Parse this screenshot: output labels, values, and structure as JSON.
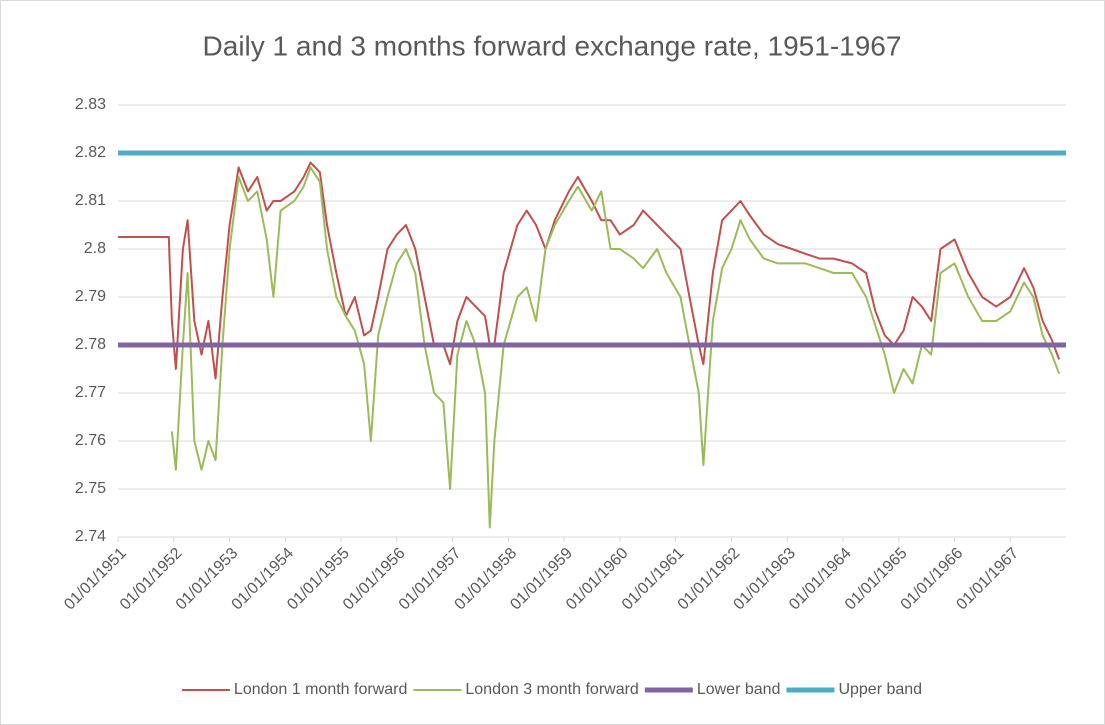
{
  "chart_data": {
    "type": "line",
    "title": "Daily 1 and 3 months forward exchange rate, 1951-1967",
    "xlim": [
      "1951-01-01",
      "1968-01-01"
    ],
    "xticks": [
      "01/01/1951",
      "01/01/1952",
      "01/01/1953",
      "01/01/1954",
      "01/01/1955",
      "01/01/1956",
      "01/01/1957",
      "01/01/1958",
      "01/01/1959",
      "01/01/1960",
      "01/01/1961",
      "01/01/1962",
      "01/01/1963",
      "01/01/1964",
      "01/01/1965",
      "01/01/1966",
      "01/01/1967"
    ],
    "ylim": [
      2.74,
      2.83
    ],
    "yticks": [
      2.74,
      2.75,
      2.76,
      2.77,
      2.78,
      2.79,
      2.8,
      2.81,
      2.82,
      2.83
    ],
    "grid": true,
    "legend": "bottom",
    "series": [
      {
        "name": "London 1 month forward",
        "color": "#c0504d",
        "width": 2,
        "x": [
          "1951-01-02",
          "1951-11-30",
          "1951-12-05",
          "1951-12-20",
          "1952-01-15",
          "1952-03-01",
          "1952-04-01",
          "1952-05-15",
          "1952-07-01",
          "1952-08-15",
          "1952-10-01",
          "1952-11-15",
          "1953-01-01",
          "1953-03-01",
          "1953-05-01",
          "1953-07-01",
          "1953-09-01",
          "1953-10-15",
          "1953-12-01",
          "1954-03-01",
          "1954-05-01",
          "1954-06-15",
          "1954-08-15",
          "1954-10-01",
          "1954-12-01",
          "1955-02-01",
          "1955-04-01",
          "1955-06-01",
          "1955-07-15",
          "1955-09-01",
          "1955-11-01",
          "1956-01-01",
          "1956-03-01",
          "1956-05-01",
          "1956-07-01",
          "1956-09-01",
          "1956-11-01",
          "1956-12-15",
          "1957-02-01",
          "1957-04-01",
          "1957-06-01",
          "1957-08-01",
          "1957-09-01",
          "1957-10-01",
          "1957-12-01",
          "1958-03-01",
          "1958-05-01",
          "1958-07-01",
          "1958-09-01",
          "1958-11-01",
          "1959-02-01",
          "1959-04-01",
          "1959-07-01",
          "1959-09-01",
          "1959-11-01",
          "1960-01-01",
          "1960-04-01",
          "1960-06-01",
          "1960-09-01",
          "1960-11-01",
          "1961-02-01",
          "1961-04-01",
          "1961-06-01",
          "1961-07-01",
          "1961-09-01",
          "1961-11-01",
          "1962-01-01",
          "1962-03-01",
          "1962-05-01",
          "1962-08-01",
          "1962-11-01",
          "1963-02-01",
          "1963-05-01",
          "1963-08-01",
          "1963-11-01",
          "1964-03-01",
          "1964-06-01",
          "1964-08-01",
          "1964-10-01",
          "1964-12-01",
          "1965-02-01",
          "1965-04-01",
          "1965-06-01",
          "1965-08-01",
          "1965-10-01",
          "1966-01-01",
          "1966-04-01",
          "1966-07-01",
          "1966-10-01",
          "1967-01-01",
          "1967-04-01",
          "1967-06-01",
          "1967-08-01",
          "1967-10-01",
          "1967-11-17"
        ],
        "values": [
          2.8025,
          2.8025,
          2.7975,
          2.785,
          2.775,
          2.8,
          2.806,
          2.785,
          2.778,
          2.785,
          2.773,
          2.79,
          2.805,
          2.817,
          2.812,
          2.815,
          2.808,
          2.81,
          2.81,
          2.812,
          2.815,
          2.818,
          2.816,
          2.805,
          2.795,
          2.786,
          2.79,
          2.782,
          2.783,
          2.79,
          2.8,
          2.803,
          2.805,
          2.8,
          2.79,
          2.78,
          2.78,
          2.776,
          2.785,
          2.79,
          2.788,
          2.786,
          2.78,
          2.78,
          2.795,
          2.805,
          2.808,
          2.805,
          2.8,
          2.806,
          2.812,
          2.815,
          2.81,
          2.806,
          2.806,
          2.803,
          2.805,
          2.808,
          2.805,
          2.803,
          2.8,
          2.79,
          2.78,
          2.776,
          2.795,
          2.806,
          2.808,
          2.81,
          2.807,
          2.803,
          2.801,
          2.8,
          2.799,
          2.798,
          2.798,
          2.797,
          2.795,
          2.787,
          2.782,
          2.78,
          2.783,
          2.79,
          2.788,
          2.785,
          2.8,
          2.802,
          2.795,
          2.79,
          2.788,
          2.79,
          2.796,
          2.792,
          2.785,
          2.781,
          2.777
        ]
      },
      {
        "name": "London 3 month forward",
        "color": "#9bbb59",
        "width": 2,
        "x": [
          "1951-01-02",
          "1951-11-30",
          "1951-12-05",
          "1951-12-20",
          "1952-01-15",
          "1952-03-01",
          "1952-04-01",
          "1952-05-15",
          "1952-07-01",
          "1952-08-15",
          "1952-10-01",
          "1952-11-15",
          "1953-01-01",
          "1953-03-01",
          "1953-05-01",
          "1953-07-01",
          "1953-09-01",
          "1953-10-15",
          "1953-12-01",
          "1954-03-01",
          "1954-05-01",
          "1954-06-15",
          "1954-08-15",
          "1954-10-01",
          "1954-12-01",
          "1955-02-01",
          "1955-04-01",
          "1955-06-01",
          "1955-07-15",
          "1955-09-01",
          "1955-11-01",
          "1956-01-01",
          "1956-03-01",
          "1956-05-01",
          "1956-07-01",
          "1956-09-01",
          "1956-11-01",
          "1956-12-15",
          "1957-02-01",
          "1957-04-01",
          "1957-06-01",
          "1957-08-01",
          "1957-09-01",
          "1957-10-01",
          "1957-12-01",
          "1958-03-01",
          "1958-05-01",
          "1958-07-01",
          "1958-09-01",
          "1958-11-01",
          "1959-02-01",
          "1959-04-01",
          "1959-07-01",
          "1959-09-01",
          "1959-11-01",
          "1960-01-01",
          "1960-04-01",
          "1960-06-01",
          "1960-09-01",
          "1960-11-01",
          "1961-02-01",
          "1961-04-01",
          "1961-06-01",
          "1961-07-01",
          "1961-09-01",
          "1961-11-01",
          "1962-01-01",
          "1962-03-01",
          "1962-05-01",
          "1962-08-01",
          "1962-11-01",
          "1963-02-01",
          "1963-05-01",
          "1963-08-01",
          "1963-11-01",
          "1964-03-01",
          "1964-06-01",
          "1964-08-01",
          "1964-10-01",
          "1964-12-01",
          "1965-02-01",
          "1965-04-01",
          "1965-06-01",
          "1965-08-01",
          "1965-10-01",
          "1966-01-01",
          "1966-04-01",
          "1966-07-01",
          "1966-10-01",
          "1967-01-01",
          "1967-04-01",
          "1967-06-01",
          "1967-08-01",
          "1967-10-01",
          "1967-11-17"
        ],
        "values": [
          null,
          null,
          null,
          2.762,
          2.754,
          2.78,
          2.795,
          2.76,
          2.754,
          2.76,
          2.756,
          2.78,
          2.8,
          2.815,
          2.81,
          2.812,
          2.802,
          2.79,
          2.808,
          2.81,
          2.813,
          2.817,
          2.814,
          2.8,
          2.79,
          2.786,
          2.783,
          2.776,
          2.76,
          2.782,
          2.79,
          2.797,
          2.8,
          2.795,
          2.78,
          2.77,
          2.768,
          2.75,
          2.778,
          2.785,
          2.78,
          2.77,
          2.742,
          2.76,
          2.78,
          2.79,
          2.792,
          2.785,
          2.8,
          2.805,
          2.81,
          2.813,
          2.808,
          2.812,
          2.8,
          2.8,
          2.798,
          2.796,
          2.8,
          2.795,
          2.79,
          2.78,
          2.77,
          2.755,
          2.785,
          2.796,
          2.8,
          2.806,
          2.802,
          2.798,
          2.797,
          2.797,
          2.797,
          2.796,
          2.795,
          2.795,
          2.79,
          2.784,
          2.778,
          2.77,
          2.775,
          2.772,
          2.78,
          2.778,
          2.795,
          2.797,
          2.79,
          2.785,
          2.785,
          2.787,
          2.793,
          2.79,
          2.782,
          2.778,
          2.774
        ]
      },
      {
        "name": "Lower band",
        "color": "#8064a2",
        "width": 5,
        "x": [
          "1951-01-01",
          "1968-01-01"
        ],
        "values": [
          2.78,
          2.78
        ]
      },
      {
        "name": "Upper band",
        "color": "#4bacc6",
        "width": 5,
        "x": [
          "1951-01-01",
          "1968-01-01"
        ],
        "values": [
          2.82,
          2.82
        ]
      }
    ]
  }
}
